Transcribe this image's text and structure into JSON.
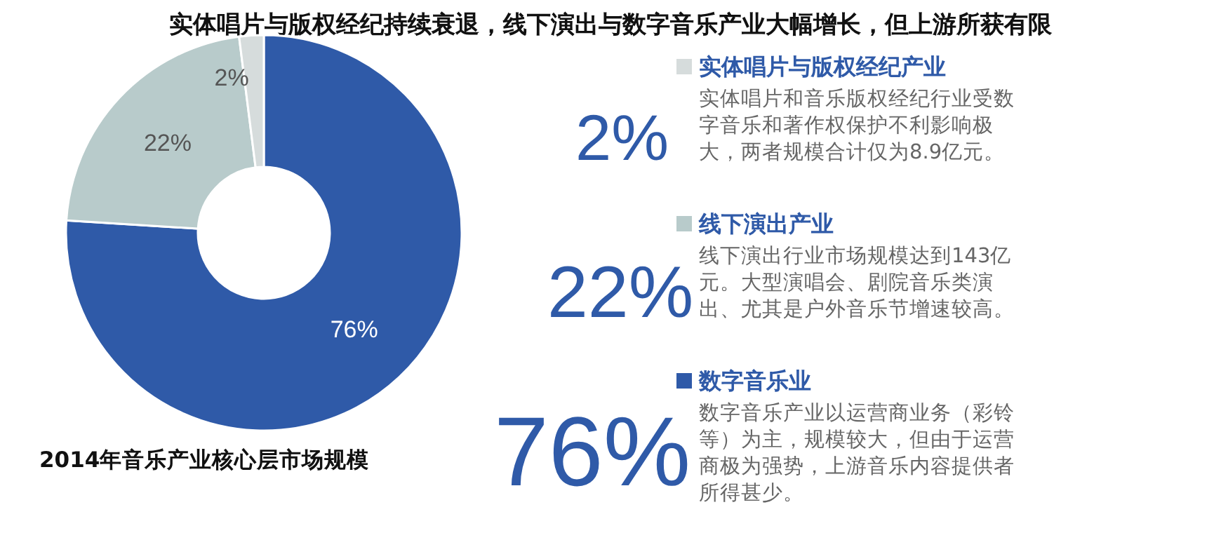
{
  "chart_data": {
    "type": "donut",
    "title": "实体唱片与版权经纪持续衰退，线下演出与数字音乐产业大幅增长，但上游所获有限",
    "categories": [
      "数字音乐业",
      "线下演出产业",
      "实体唱片与版权经纪产业"
    ],
    "values": [
      76,
      22,
      2
    ],
    "colors": [
      "#2f5aa8",
      "#b8cbcb",
      "#d6dcdc"
    ],
    "value_labels": [
      "76%",
      "22%",
      "2%"
    ],
    "legend": "right",
    "annotations": [
      "2014年音乐产业核心层市场规模",
      "数字音乐产业以运营商业务（彩铃等）为主，规模较大，但由于运营商极为强势，上游音乐内容提供者所得甚少。",
      "线下演出行业市场规模达到143亿元。大型演唱会、剧院音乐类演出、尤其是户外音乐节增速较高。",
      "实体唱片和音乐版权经纪行业受数字音乐和著作权保护不利影响极大，两者规模合计仅为8.9亿元。",
      "76%",
      "22%",
      "2%"
    ]
  }
}
